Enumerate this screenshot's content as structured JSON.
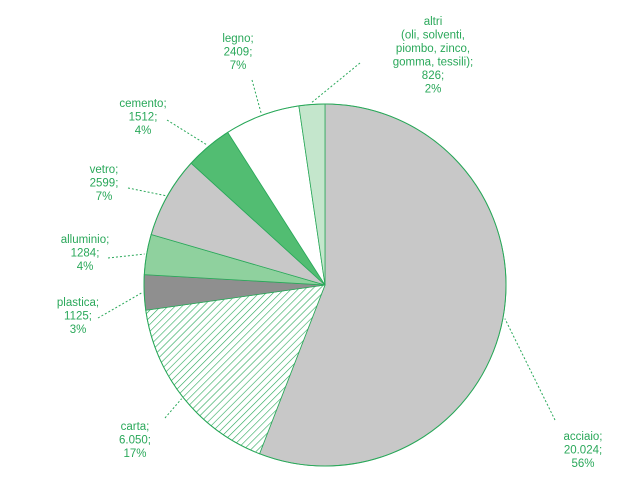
{
  "chart_data": {
    "type": "pie",
    "unit_note": "",
    "slices": [
      {
        "key": "acciaio",
        "label_lines": [
          "acciaio;",
          "20.024;",
          "56%"
        ],
        "value": 20024,
        "percent": 56,
        "color": "#c8c8c8",
        "pattern": "solid"
      },
      {
        "key": "carta",
        "label_lines": [
          "carta;",
          "6.050;",
          "17%"
        ],
        "value": 6050,
        "percent": 17,
        "color": "#ffffff",
        "pattern": "hatch"
      },
      {
        "key": "plastica",
        "label_lines": [
          "plastica;",
          "1125;",
          "3%"
        ],
        "value": 1125,
        "percent": 3,
        "color": "#8f8f8f",
        "pattern": "solid"
      },
      {
        "key": "alluminio",
        "label_lines": [
          "alluminio;",
          "1284;",
          "4%"
        ],
        "value": 1284,
        "percent": 4,
        "color": "#8fd19e",
        "pattern": "solid"
      },
      {
        "key": "vetro",
        "label_lines": [
          "vetro;",
          "2599;",
          "7%"
        ],
        "value": 2599,
        "percent": 7,
        "color": "#c8c8c8",
        "pattern": "solid"
      },
      {
        "key": "cemento",
        "label_lines": [
          "cemento;",
          "1512;",
          "4%"
        ],
        "value": 1512,
        "percent": 4,
        "color": "#52bd72",
        "pattern": "solid"
      },
      {
        "key": "legno",
        "label_lines": [
          "legno;",
          "2409;",
          "7%"
        ],
        "value": 2409,
        "percent": 7,
        "color": "#ffffff",
        "pattern": "solid"
      },
      {
        "key": "altri",
        "label_lines": [
          "altri",
          "(oli, solventi,",
          "piombo, zinco,",
          "gomma, tessili);",
          "826;",
          "2%"
        ],
        "value": 826,
        "percent": 2,
        "color": "#c4e6cc",
        "pattern": "solid"
      }
    ],
    "start_position": "top, clockwise",
    "outline_color": "#2aa85a",
    "label_color": "#2aa85a"
  }
}
